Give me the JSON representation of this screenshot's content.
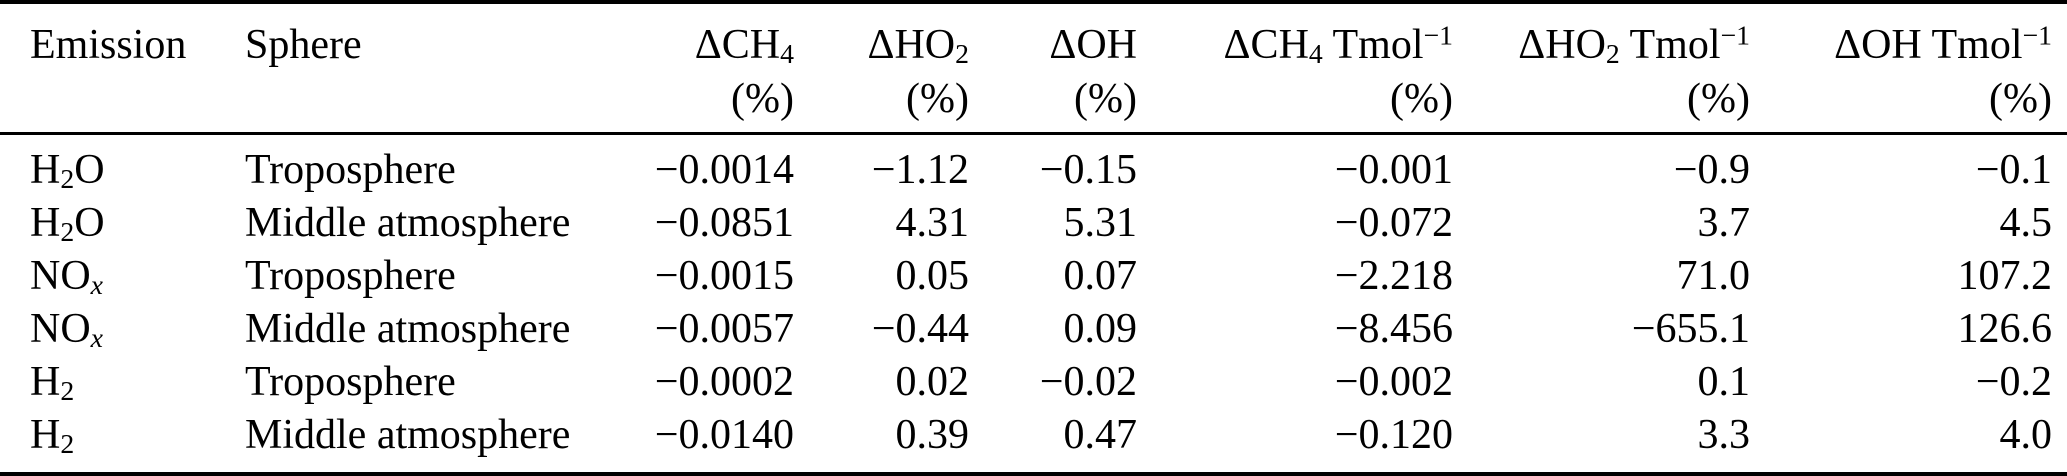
{
  "colors": {
    "background": "#ffffff",
    "text": "#000000",
    "rule": "#000000"
  },
  "table": {
    "columns": [
      {
        "id": "emission",
        "label": "Emission",
        "unit": "",
        "align": "left"
      },
      {
        "id": "sphere",
        "label": "Sphere",
        "unit": "",
        "align": "left"
      },
      {
        "id": "dch4",
        "label": "ΔCH_{4}",
        "unit": "(%)",
        "align": "right"
      },
      {
        "id": "dho2",
        "label": "ΔHO_{2}",
        "unit": "(%)",
        "align": "right"
      },
      {
        "id": "doh",
        "label": "ΔOH",
        "unit": "(%)",
        "align": "right"
      },
      {
        "id": "dch4-tmol",
        "label": "ΔCH_{4} Tmol^{−1}",
        "unit": "(%)",
        "align": "right"
      },
      {
        "id": "dho2-tmol",
        "label": "ΔHO_{2} Tmol^{−1}",
        "unit": "(%)",
        "align": "right"
      },
      {
        "id": "doh-tmol",
        "label": "ΔOH Tmol^{−1}",
        "unit": "(%)",
        "align": "right"
      }
    ],
    "rows": [
      {
        "emission": "H_{2}O",
        "sphere": "Troposphere",
        "values": [
          "−0.0014",
          "−1.12",
          "−0.15",
          "−0.001",
          "−0.9",
          "−0.1"
        ]
      },
      {
        "emission": "H_{2}O",
        "sphere": "Middle atmosphere",
        "values": [
          "−0.0851",
          "4.31",
          "5.31",
          "−0.072",
          "3.7",
          "4.5"
        ]
      },
      {
        "emission": "NO_{x}",
        "sphere": "Troposphere",
        "values": [
          "−0.0015",
          "0.05",
          "0.07",
          "−2.218",
          "71.0",
          "107.2"
        ]
      },
      {
        "emission": "NO_{x}",
        "sphere": "Middle atmosphere",
        "values": [
          "−0.0057",
          "−0.44",
          "0.09",
          "−8.456",
          "−655.1",
          "126.6"
        ]
      },
      {
        "emission": "H_{2}",
        "sphere": "Troposphere",
        "values": [
          "−0.0002",
          "0.02",
          "−0.02",
          "−0.002",
          "0.1",
          "−0.2"
        ]
      },
      {
        "emission": "H_{2}",
        "sphere": "Middle atmosphere",
        "values": [
          "−0.0140",
          "0.39",
          "0.47",
          "−0.120",
          "3.3",
          "4.0"
        ]
      }
    ]
  }
}
